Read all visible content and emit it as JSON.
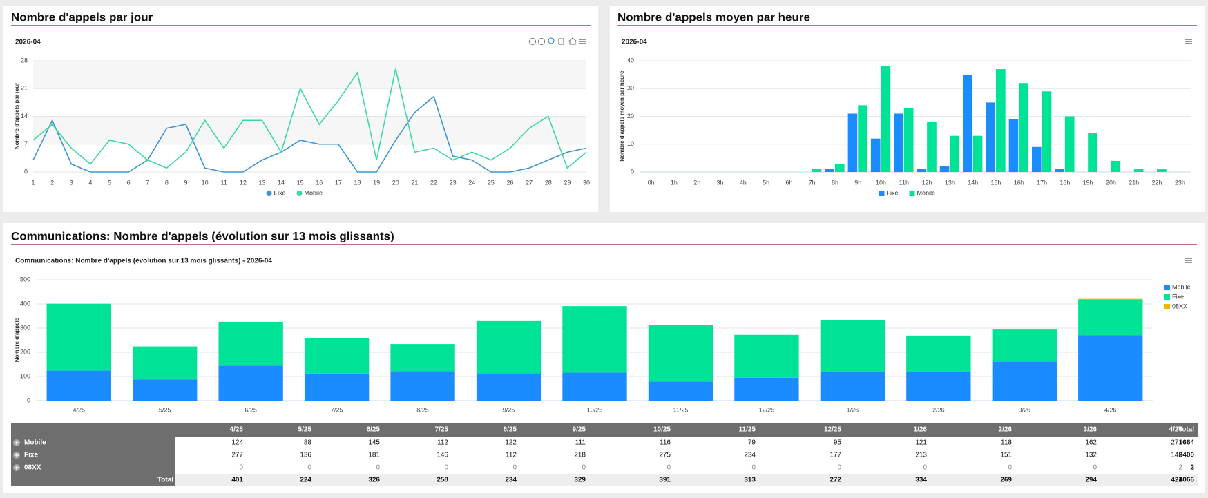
{
  "chart_data": [
    {
      "type": "line",
      "title": "Nombre d'appels par jour",
      "subtitle": "2026-04",
      "y_label": "Nombre d'appels par jour",
      "x": [
        1,
        2,
        3,
        4,
        5,
        6,
        7,
        8,
        9,
        10,
        11,
        12,
        13,
        14,
        15,
        16,
        17,
        18,
        19,
        20,
        21,
        22,
        23,
        24,
        25,
        26,
        27,
        28,
        29,
        30
      ],
      "xlim": [
        1,
        30
      ],
      "ylim": [
        0,
        28
      ],
      "yticks": [
        0,
        7,
        14,
        21,
        28
      ],
      "grid": true,
      "alternate_bands": true,
      "legend": "bottom",
      "series": [
        {
          "name": "Fixe",
          "color": "#3a93d6",
          "values": [
            3,
            13,
            2,
            0,
            0,
            0,
            3,
            11,
            12,
            1,
            0,
            0,
            3,
            5,
            8,
            7,
            7,
            0,
            0,
            8,
            15,
            19,
            4,
            3,
            0,
            0,
            1,
            3,
            5,
            6
          ]
        },
        {
          "name": "Mobile",
          "color": "#3ad9a0",
          "values": [
            8,
            12,
            6,
            2,
            8,
            7,
            3,
            1,
            5,
            13,
            6,
            13,
            13,
            5,
            21,
            12,
            18,
            25,
            3,
            26,
            5,
            6,
            3,
            5,
            3,
            6,
            11,
            14,
            1,
            5
          ]
        }
      ]
    },
    {
      "type": "bar",
      "title": "Nombre d'appels moyen par heure",
      "subtitle": "2026-04",
      "y_label": "Nombre d'appels moyen par heure",
      "categories": [
        "0h",
        "1h",
        "2h",
        "3h",
        "4h",
        "5h",
        "6h",
        "7h",
        "8h",
        "9h",
        "10h",
        "11h",
        "12h",
        "13h",
        "14h",
        "15h",
        "16h",
        "17h",
        "18h",
        "19h",
        "20h",
        "21h",
        "22h",
        "23h"
      ],
      "ylim": [
        0,
        40
      ],
      "yticks": [
        0,
        10,
        20,
        30,
        40
      ],
      "grid": true,
      "legend": "bottom",
      "series": [
        {
          "name": "Fixe",
          "color": "#1a8cff",
          "values": [
            0,
            0,
            0,
            0,
            0,
            0,
            0,
            0,
            1,
            21,
            12,
            21,
            1,
            2,
            35,
            25,
            19,
            9,
            1,
            0,
            0,
            0,
            0,
            0
          ]
        },
        {
          "name": "Mobile",
          "color": "#00e396",
          "values": [
            0,
            0,
            0,
            0,
            0,
            0,
            0,
            1,
            3,
            24,
            38,
            23,
            18,
            13,
            13,
            37,
            32,
            29,
            20,
            14,
            4,
            1,
            1,
            0
          ]
        }
      ]
    },
    {
      "type": "stacked_bar",
      "title": "Communications: Nombre d'appels (évolution sur 13 mois glissants)",
      "subtitle": "Communications: Nombre d'appels (évolution sur 13 mois glissants) - 2026-04",
      "y_label": "Nombre d'appels",
      "categories": [
        "4/25",
        "5/25",
        "6/25",
        "7/25",
        "8/25",
        "9/25",
        "10/25",
        "11/25",
        "12/25",
        "1/26",
        "2/26",
        "3/26",
        "4/26"
      ],
      "ylim": [
        0,
        500
      ],
      "yticks": [
        0,
        100,
        200,
        300,
        400,
        500
      ],
      "grid": true,
      "legend": "right",
      "series": [
        {
          "name": "Mobile",
          "color": "#1a8cff",
          "values": [
            124,
            88,
            145,
            112,
            122,
            111,
            116,
            79,
            95,
            121,
            118,
            162,
            271
          ]
        },
        {
          "name": "Fixe",
          "color": "#00e396",
          "values": [
            277,
            136,
            181,
            146,
            112,
            218,
            275,
            234,
            177,
            213,
            151,
            132,
            148
          ]
        },
        {
          "name": "08XX",
          "color": "#f5b400",
          "values": [
            0,
            0,
            0,
            0,
            0,
            0,
            0,
            0,
            0,
            0,
            0,
            0,
            2
          ]
        }
      ]
    }
  ],
  "table": {
    "total_header": "Total",
    "total_label": "Total",
    "row_totals": [
      1664,
      2400,
      2
    ],
    "column_totals": [
      401,
      224,
      326,
      258,
      234,
      329,
      391,
      313,
      272,
      334,
      269,
      294,
      421
    ],
    "grand_total": 4066
  }
}
